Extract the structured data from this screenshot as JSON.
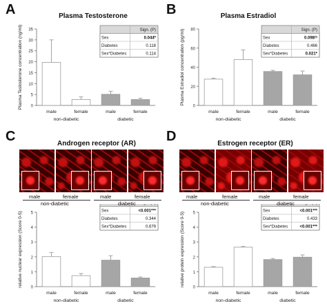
{
  "panels": {
    "A": {
      "label": "A",
      "title": "Plasma Testosterone"
    },
    "B": {
      "label": "B",
      "title": "Plasma Estradiol"
    },
    "C": {
      "label": "C",
      "title": "Androgen receptor (AR)"
    },
    "D": {
      "label": "D",
      "title": "Estrogen receptor (ER)"
    }
  },
  "micrographs": {
    "C": {
      "sex_labels": [
        "male",
        "female",
        "male",
        "female"
      ],
      "groups": [
        "non-diabetic",
        "diabetic"
      ]
    },
    "D": {
      "sex_labels": [
        "male",
        "female",
        "male",
        "female"
      ],
      "groups": [
        "non-diabetic",
        "diabetic"
      ]
    }
  },
  "colors": {
    "non_diabetic_fill": "#ffffff",
    "diabetic_fill": "#a6a6a6",
    "stain_red": "#c81010",
    "table_header": "#d9d9d9"
  },
  "chart_data": [
    {
      "id": "A",
      "type": "bar",
      "title": "Plasma Testosterone",
      "ylabel": "Plasma Testosterone concentration (ng/ml)",
      "ylim": [
        0,
        35
      ],
      "yticks": [
        0,
        5,
        10,
        15,
        20,
        25,
        30,
        35
      ],
      "categories": [
        "male",
        "female",
        "male",
        "female"
      ],
      "groups": [
        "non-diabetic",
        "diabetic"
      ],
      "values": [
        19.7,
        2.7,
        5.1,
        2.7
      ],
      "errors": [
        10.3,
        1.2,
        1.4,
        0.6
      ],
      "table": {
        "header": "Sign. (P)",
        "rows": [
          {
            "factor": "Sex",
            "p": "0.044*",
            "bold": true
          },
          {
            "factor": "Diabetes",
            "p": "0.118",
            "bold": false
          },
          {
            "factor": "Sex*Diabetes",
            "p": "0.114",
            "bold": false
          }
        ]
      }
    },
    {
      "id": "B",
      "type": "bar",
      "title": "Plasma Estradiol",
      "ylabel": "Plasma Estradiol concentration (pg/ml)",
      "ylim": [
        0,
        80
      ],
      "yticks": [
        0,
        20,
        40,
        60,
        80
      ],
      "categories": [
        "male",
        "female",
        "male",
        "female"
      ],
      "groups": [
        "non-diabetic",
        "diabetic"
      ],
      "values": [
        27.5,
        48.0,
        35.5,
        32.0
      ],
      "errors": [
        1.0,
        10.0,
        1.2,
        4.0
      ],
      "table": {
        "header": "Sign. (P)",
        "rows": [
          {
            "factor": "Sex",
            "p": "0.098",
            "sup": "(t)",
            "bold": true
          },
          {
            "factor": "Diabetes",
            "p": "0.466",
            "bold": false
          },
          {
            "factor": "Sex*Diabetes",
            "p": "0.021*",
            "bold": true
          }
        ]
      }
    },
    {
      "id": "C",
      "type": "bar",
      "ylabel": "relative nuclear expression (Score 0-5)",
      "ylim": [
        0,
        5
      ],
      "yticks": [
        0,
        1,
        2,
        3,
        4,
        5
      ],
      "categories": [
        "male",
        "female",
        "male",
        "female"
      ],
      "groups": [
        "non-diabetic",
        "diabetic"
      ],
      "values": [
        2.02,
        0.74,
        1.78,
        0.58
      ],
      "errors": [
        0.28,
        0.14,
        0.3,
        0.07
      ],
      "table": {
        "header": "Sign. (P)",
        "rows": [
          {
            "factor": "Sex",
            "p": "<0.001***",
            "bold": true
          },
          {
            "factor": "Diabetes",
            "p": "0.344",
            "bold": false
          },
          {
            "factor": "Sex*Diabetes",
            "p": "0.679",
            "bold": false
          }
        ]
      }
    },
    {
      "id": "D",
      "type": "bar",
      "ylabel": "relative protein expression (Score 0-5)",
      "ylim": [
        0,
        5
      ],
      "yticks": [
        0,
        1,
        2,
        3,
        4,
        5
      ],
      "categories": [
        "male",
        "female",
        "male",
        "female"
      ],
      "groups": [
        "non-diabetic",
        "diabetic"
      ],
      "values": [
        1.3,
        2.65,
        1.82,
        1.98
      ],
      "errors": [
        0.05,
        0.05,
        0.07,
        0.15
      ],
      "table": {
        "header": "Sign. (P)",
        "rows": [
          {
            "factor": "Sex",
            "p": "<0.001***",
            "bold": true
          },
          {
            "factor": "Diabetes",
            "p": "0.433",
            "bold": false
          },
          {
            "factor": "Sex*Diabetes",
            "p": "<0.001***",
            "bold": true
          }
        ]
      }
    }
  ]
}
